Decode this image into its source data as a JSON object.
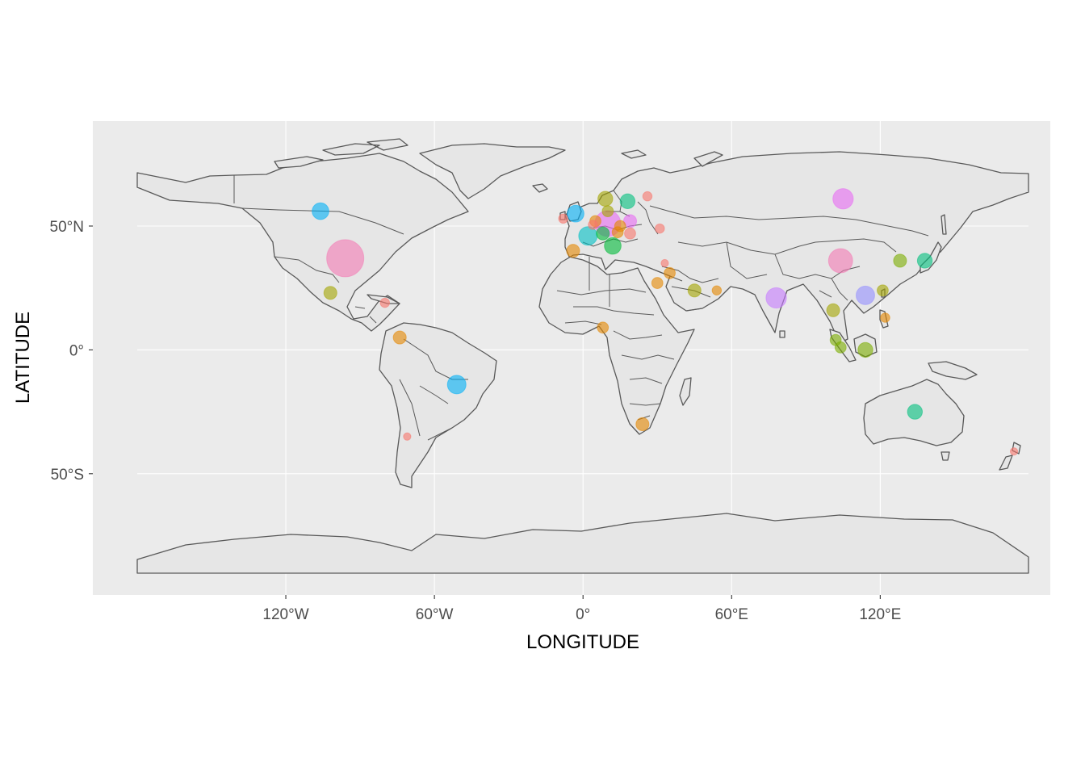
{
  "chart_data": {
    "type": "scatter",
    "subtype": "world-map-bubble",
    "xlabel": "LONGITUDE",
    "ylabel": "LATITUDE",
    "xlim": [
      -180,
      180
    ],
    "ylim": [
      -90,
      90
    ],
    "x_ticks": [
      {
        "value": -120,
        "label": "120°W"
      },
      {
        "value": -60,
        "label": "60°W"
      },
      {
        "value": 0,
        "label": "0°"
      },
      {
        "value": 60,
        "label": "60°E"
      },
      {
        "value": 120,
        "label": "120°E"
      }
    ],
    "y_ticks": [
      {
        "value": 50,
        "label": "50°N"
      },
      {
        "value": 0,
        "label": "0°"
      },
      {
        "value": -50,
        "label": "50°S"
      }
    ],
    "grid": true,
    "legend": "none",
    "colors": {
      "panel_background": "#ebebeb",
      "land_fill": "#e6e6e6",
      "land_outline": "#595959",
      "grid_line": "#ffffff"
    },
    "points": [
      {
        "lon": -96,
        "lat": 37,
        "size": 10,
        "color": "#F37AB4"
      },
      {
        "lon": -106,
        "lat": 56,
        "size": 4.5,
        "color": "#00B0F6"
      },
      {
        "lon": -102,
        "lat": 23,
        "size": 3.5,
        "color": "#A3A500"
      },
      {
        "lon": -80,
        "lat": 19,
        "size": 2.5,
        "color": "#F8766D"
      },
      {
        "lon": -74,
        "lat": 5,
        "size": 3.5,
        "color": "#E58700"
      },
      {
        "lon": -71,
        "lat": -35,
        "size": 2,
        "color": "#F8766D"
      },
      {
        "lon": -51,
        "lat": -14,
        "size": 5,
        "color": "#00B0F6"
      },
      {
        "lon": -3,
        "lat": 55,
        "size": 4.5,
        "color": "#00B0F6"
      },
      {
        "lon": -8,
        "lat": 53,
        "size": 2.5,
        "color": "#F8766D"
      },
      {
        "lon": 2,
        "lat": 46,
        "size": 5,
        "color": "#00BFC4"
      },
      {
        "lon": -4,
        "lat": 40,
        "size": 3.5,
        "color": "#E58700"
      },
      {
        "lon": 10,
        "lat": 51,
        "size": 7,
        "color": "#E76BF3"
      },
      {
        "lon": 8,
        "lat": 47,
        "size": 3.5,
        "color": "#00BA38"
      },
      {
        "lon": 5,
        "lat": 52,
        "size": 3,
        "color": "#E58700"
      },
      {
        "lon": 4,
        "lat": 50.5,
        "size": 2.5,
        "color": "#F8766D"
      },
      {
        "lon": 14,
        "lat": 47.5,
        "size": 3,
        "color": "#E58700"
      },
      {
        "lon": 12,
        "lat": 42,
        "size": 4.5,
        "color": "#00BA38"
      },
      {
        "lon": 9,
        "lat": 61,
        "size": 4,
        "color": "#A3A500"
      },
      {
        "lon": 10,
        "lat": 56,
        "size": 3,
        "color": "#A3A500"
      },
      {
        "lon": 18,
        "lat": 60,
        "size": 4,
        "color": "#00BF7D"
      },
      {
        "lon": 26,
        "lat": 62,
        "size": 2.5,
        "color": "#F8766D"
      },
      {
        "lon": 19,
        "lat": 52,
        "size": 3.5,
        "color": "#E76BF3"
      },
      {
        "lon": 15,
        "lat": 50,
        "size": 3,
        "color": "#E58700"
      },
      {
        "lon": 19,
        "lat": 47,
        "size": 3,
        "color": "#F8766D"
      },
      {
        "lon": 31,
        "lat": 49,
        "size": 2.5,
        "color": "#F8766D"
      },
      {
        "lon": 35,
        "lat": 31,
        "size": 3,
        "color": "#E58700"
      },
      {
        "lon": 33,
        "lat": 35,
        "size": 2,
        "color": "#F8766D"
      },
      {
        "lon": 30,
        "lat": 27,
        "size": 3,
        "color": "#E58700"
      },
      {
        "lon": 45,
        "lat": 24,
        "size": 3.5,
        "color": "#A3A500"
      },
      {
        "lon": 54,
        "lat": 24,
        "size": 2.5,
        "color": "#E58700"
      },
      {
        "lon": 8,
        "lat": 9,
        "size": 3,
        "color": "#E58700"
      },
      {
        "lon": 24,
        "lat": -30,
        "size": 3.5,
        "color": "#E58700"
      },
      {
        "lon": 78,
        "lat": 21,
        "size": 5.5,
        "color": "#C77CFF"
      },
      {
        "lon": 105,
        "lat": 61,
        "size": 5.5,
        "color": "#E76BF3"
      },
      {
        "lon": 104,
        "lat": 36,
        "size": 6.5,
        "color": "#F37AB4"
      },
      {
        "lon": 114,
        "lat": 22,
        "size": 5,
        "color": "#9590FF"
      },
      {
        "lon": 121,
        "lat": 24,
        "size": 3,
        "color": "#A3A500"
      },
      {
        "lon": 128,
        "lat": 36,
        "size": 3.5,
        "color": "#7CAE00"
      },
      {
        "lon": 138,
        "lat": 36,
        "size": 4,
        "color": "#00BF7D"
      },
      {
        "lon": 101,
        "lat": 16,
        "size": 3.5,
        "color": "#A3A500"
      },
      {
        "lon": 102,
        "lat": 4,
        "size": 3,
        "color": "#7CAE00"
      },
      {
        "lon": 104,
        "lat": 1,
        "size": 3,
        "color": "#7CAE00"
      },
      {
        "lon": 114,
        "lat": 0,
        "size": 4,
        "color": "#7CAE00"
      },
      {
        "lon": 122,
        "lat": 13,
        "size": 2.5,
        "color": "#E58700"
      },
      {
        "lon": 134,
        "lat": -25,
        "size": 4,
        "color": "#00BF7D"
      },
      {
        "lon": 174,
        "lat": -41,
        "size": 2,
        "color": "#F8766D"
      }
    ]
  }
}
